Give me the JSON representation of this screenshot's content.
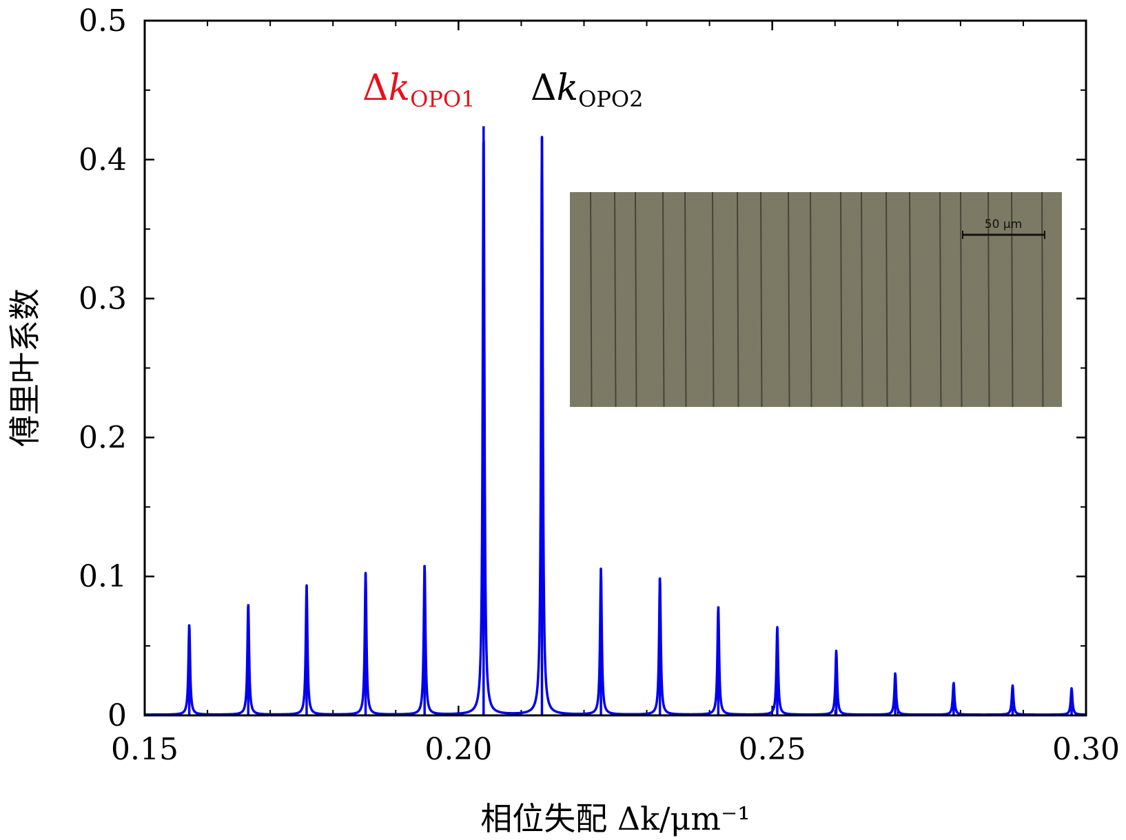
{
  "chart_data": {
    "type": "line",
    "xlabel": "相位失配 Δk/μm⁻¹",
    "ylabel": "傅里叶系数",
    "xlim": [
      0.15,
      0.3
    ],
    "ylim": [
      0,
      0.5
    ],
    "xticks": [
      0.15,
      0.2,
      0.25,
      0.3
    ],
    "xtick_labels": [
      "0.15",
      "0.20",
      "0.25",
      "0.30"
    ],
    "yticks": [
      0,
      0.1,
      0.2,
      0.3,
      0.4,
      0.5
    ],
    "ytick_labels": [
      "0",
      "0.1",
      "0.2",
      "0.3",
      "0.4",
      "0.5"
    ],
    "grid": false,
    "series": [
      {
        "color": "#0000ee",
        "peaks": [
          {
            "x": 0.1571,
            "y": 0.065
          },
          {
            "x": 0.1665,
            "y": 0.08
          },
          {
            "x": 0.1758,
            "y": 0.093
          },
          {
            "x": 0.1852,
            "y": 0.102
          },
          {
            "x": 0.1946,
            "y": 0.108
          },
          {
            "x": 0.204,
            "y": 0.424
          },
          {
            "x": 0.2133,
            "y": 0.416
          },
          {
            "x": 0.2227,
            "y": 0.105
          },
          {
            "x": 0.2321,
            "y": 0.099
          },
          {
            "x": 0.2414,
            "y": 0.078
          },
          {
            "x": 0.2508,
            "y": 0.063
          },
          {
            "x": 0.2602,
            "y": 0.046
          },
          {
            "x": 0.2696,
            "y": 0.03
          },
          {
            "x": 0.2789,
            "y": 0.023
          },
          {
            "x": 0.2883,
            "y": 0.021
          },
          {
            "x": 0.2977,
            "y": 0.019
          }
        ]
      }
    ],
    "annotations": [
      {
        "delta": "Δ",
        "k": "k",
        "sub": "OPO1",
        "color": "#e8101c"
      },
      {
        "delta": "Δ",
        "k": "k",
        "sub": "OPO2",
        "color": "#000000"
      }
    ],
    "inset": {
      "description_color": "#7c7a64",
      "scale_bar_label": "50 μm"
    }
  }
}
